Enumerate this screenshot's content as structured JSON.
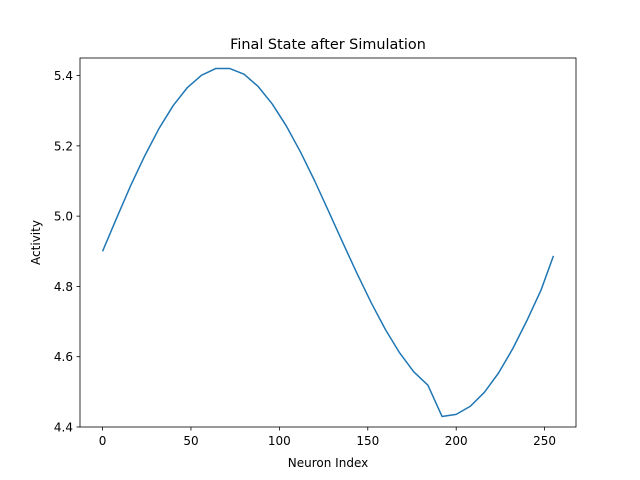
{
  "chart_data": {
    "type": "line",
    "title": "Final State after Simulation",
    "xlabel": "Neuron Index",
    "ylabel": "Activity",
    "xlim": [
      -12.75,
      267.75
    ],
    "ylim": [
      4.4,
      5.45
    ],
    "xticks": [
      {
        "value": 0,
        "label": "0"
      },
      {
        "value": 50,
        "label": "50"
      },
      {
        "value": 100,
        "label": "100"
      },
      {
        "value": 150,
        "label": "150"
      },
      {
        "value": 200,
        "label": "200"
      },
      {
        "value": 250,
        "label": "250"
      }
    ],
    "yticks": [
      {
        "value": 4.4,
        "label": "4.4"
      },
      {
        "value": 4.6,
        "label": "4.6"
      },
      {
        "value": 4.8,
        "label": "4.8"
      },
      {
        "value": 5.0,
        "label": "5.0"
      },
      {
        "value": 5.2,
        "label": "5.2"
      },
      {
        "value": 5.4,
        "label": "5.4"
      }
    ],
    "grid": false,
    "legend": "none",
    "series": [
      {
        "color": "#1f77b4",
        "x": [
          0,
          8,
          16,
          24,
          32,
          40,
          48,
          56,
          64,
          72,
          80,
          88,
          96,
          104,
          112,
          120,
          128,
          136,
          144,
          152,
          160,
          168,
          176,
          184,
          192,
          200,
          208,
          216,
          224,
          232,
          240,
          248,
          255
        ],
        "y": [
          4.9,
          4.995,
          5.088,
          5.173,
          5.25,
          5.315,
          5.366,
          5.401,
          5.42,
          5.42,
          5.404,
          5.369,
          5.319,
          5.256,
          5.182,
          5.1,
          5.012,
          4.923,
          4.836,
          4.753,
          4.677,
          4.611,
          4.557,
          4.519,
          4.43,
          4.436,
          4.459,
          4.499,
          4.554,
          4.623,
          4.703,
          4.79,
          4.887
        ]
      }
    ]
  }
}
